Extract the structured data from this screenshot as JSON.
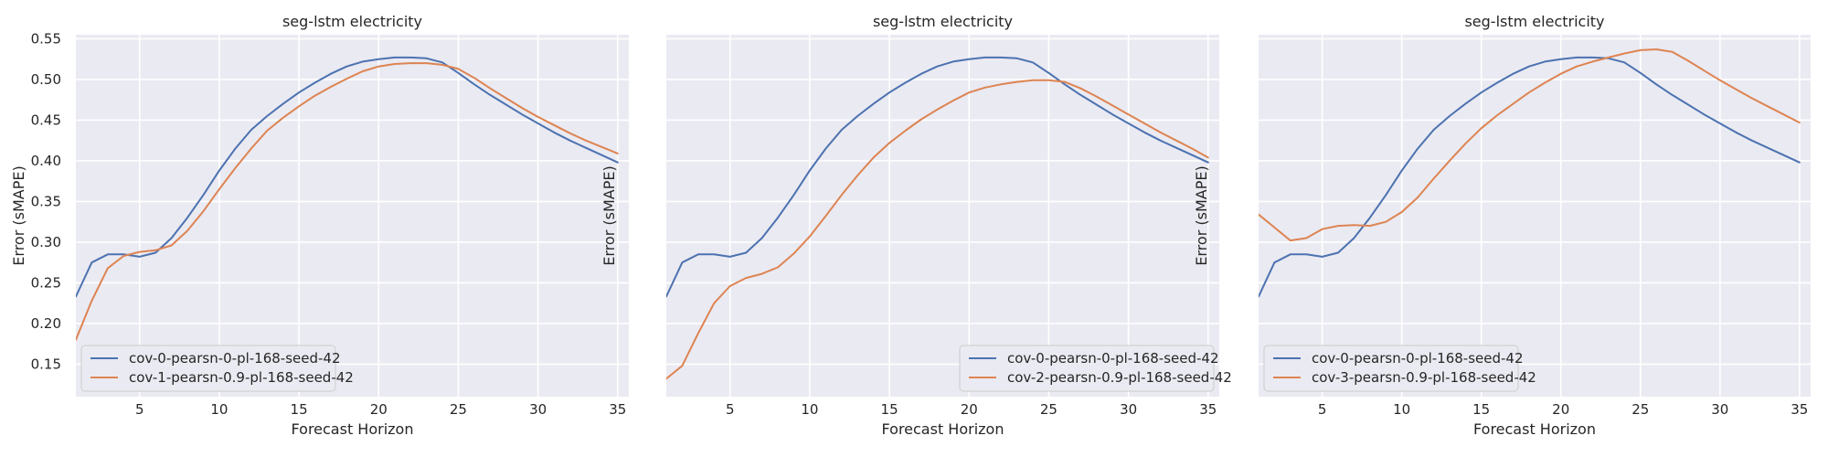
{
  "chart_data": [
    {
      "type": "line",
      "title": "seg-lstm electricity",
      "xlabel": "Forecast Horizon",
      "ylabel": "Error (sMAPE)",
      "xlim": [
        1,
        35.7
      ],
      "ylim": [
        0.11,
        0.555
      ],
      "xticks": [
        5,
        10,
        15,
        20,
        25,
        30,
        35
      ],
      "yticks": [
        0.15,
        0.2,
        0.25,
        0.3,
        0.35,
        0.4,
        0.45,
        0.5,
        0.55
      ],
      "ytick_labels": [
        "0.15",
        "0.20",
        "0.25",
        "0.30",
        "0.35",
        "0.40",
        "0.45",
        "0.50",
        "0.55"
      ],
      "grid": true,
      "legend_position": "lower-left",
      "x": [
        1,
        2,
        3,
        4,
        5,
        6,
        7,
        8,
        9,
        10,
        11,
        12,
        13,
        14,
        15,
        16,
        17,
        18,
        19,
        20,
        21,
        22,
        23,
        24,
        25,
        26,
        27,
        28,
        29,
        30,
        31,
        32,
        33,
        34,
        35
      ],
      "series": [
        {
          "name": "cov-0-pearsn-0-pl-168-seed-42",
          "color": "#4c72b0",
          "values": [
            0.233,
            0.275,
            0.285,
            0.285,
            0.282,
            0.287,
            0.305,
            0.33,
            0.358,
            0.388,
            0.415,
            0.438,
            0.455,
            0.47,
            0.484,
            0.496,
            0.507,
            0.516,
            0.522,
            0.525,
            0.527,
            0.527,
            0.526,
            0.521,
            0.508,
            0.494,
            0.481,
            0.469,
            0.457,
            0.446,
            0.435,
            0.425,
            0.416,
            0.407,
            0.398
          ]
        },
        {
          "name": "cov-1-pearsn-0.9-pl-168-seed-42",
          "color": "#dd8452",
          "values": [
            0.18,
            0.228,
            0.268,
            0.283,
            0.288,
            0.29,
            0.296,
            0.314,
            0.338,
            0.365,
            0.391,
            0.415,
            0.437,
            0.453,
            0.467,
            0.48,
            0.491,
            0.501,
            0.51,
            0.516,
            0.519,
            0.52,
            0.52,
            0.518,
            0.513,
            0.502,
            0.489,
            0.477,
            0.465,
            0.454,
            0.444,
            0.434,
            0.425,
            0.417,
            0.409
          ]
        }
      ]
    },
    {
      "type": "line",
      "title": "seg-lstm electricity",
      "xlabel": "Forecast Horizon",
      "ylabel": "Error (sMAPE)",
      "xlim": [
        1,
        35.7
      ],
      "ylim": [
        0.11,
        0.555
      ],
      "xticks": [
        5,
        10,
        15,
        20,
        25,
        30,
        35
      ],
      "yticks": [
        0.15,
        0.2,
        0.25,
        0.3,
        0.35,
        0.4,
        0.45,
        0.5,
        0.55
      ],
      "ytick_labels": [],
      "grid": true,
      "legend_position": "lower-right",
      "x": [
        1,
        2,
        3,
        4,
        5,
        6,
        7,
        8,
        9,
        10,
        11,
        12,
        13,
        14,
        15,
        16,
        17,
        18,
        19,
        20,
        21,
        22,
        23,
        24,
        25,
        26,
        27,
        28,
        29,
        30,
        31,
        32,
        33,
        34,
        35
      ],
      "series": [
        {
          "name": "cov-0-pearsn-0-pl-168-seed-42",
          "color": "#4c72b0",
          "values": [
            0.233,
            0.275,
            0.285,
            0.285,
            0.282,
            0.287,
            0.305,
            0.33,
            0.358,
            0.388,
            0.415,
            0.438,
            0.455,
            0.47,
            0.484,
            0.496,
            0.507,
            0.516,
            0.522,
            0.525,
            0.527,
            0.527,
            0.526,
            0.521,
            0.508,
            0.494,
            0.481,
            0.469,
            0.457,
            0.446,
            0.435,
            0.425,
            0.416,
            0.407,
            0.398
          ]
        },
        {
          "name": "cov-2-pearsn-0.9-pl-168-seed-42",
          "color": "#dd8452",
          "values": [
            0.132,
            0.148,
            0.188,
            0.225,
            0.246,
            0.256,
            0.261,
            0.269,
            0.286,
            0.307,
            0.332,
            0.358,
            0.382,
            0.404,
            0.422,
            0.437,
            0.451,
            0.463,
            0.474,
            0.484,
            0.49,
            0.494,
            0.497,
            0.499,
            0.499,
            0.497,
            0.489,
            0.479,
            0.468,
            0.457,
            0.446,
            0.435,
            0.425,
            0.415,
            0.404
          ]
        }
      ]
    },
    {
      "type": "line",
      "title": "seg-lstm electricity",
      "xlabel": "Forecast Horizon",
      "ylabel": "Error (sMAPE)",
      "xlim": [
        1,
        35.7
      ],
      "ylim": [
        0.11,
        0.555
      ],
      "xticks": [
        5,
        10,
        15,
        20,
        25,
        30,
        35
      ],
      "yticks": [
        0.15,
        0.2,
        0.25,
        0.3,
        0.35,
        0.4,
        0.45,
        0.5,
        0.55
      ],
      "ytick_labels": [],
      "grid": true,
      "legend_position": "lower-left",
      "x": [
        1,
        2,
        3,
        4,
        5,
        6,
        7,
        8,
        9,
        10,
        11,
        12,
        13,
        14,
        15,
        16,
        17,
        18,
        19,
        20,
        21,
        22,
        23,
        24,
        25,
        26,
        27,
        28,
        29,
        30,
        31,
        32,
        33,
        34,
        35
      ],
      "series": [
        {
          "name": "cov-0-pearsn-0-pl-168-seed-42",
          "color": "#4c72b0",
          "values": [
            0.233,
            0.275,
            0.285,
            0.285,
            0.282,
            0.287,
            0.305,
            0.33,
            0.358,
            0.388,
            0.415,
            0.438,
            0.455,
            0.47,
            0.484,
            0.496,
            0.507,
            0.516,
            0.522,
            0.525,
            0.527,
            0.527,
            0.526,
            0.521,
            0.508,
            0.494,
            0.481,
            0.469,
            0.457,
            0.446,
            0.435,
            0.425,
            0.416,
            0.407,
            0.398
          ]
        },
        {
          "name": "cov-3-pearsn-0.9-pl-168-seed-42",
          "color": "#dd8452",
          "values": [
            0.334,
            0.318,
            0.302,
            0.305,
            0.316,
            0.32,
            0.321,
            0.32,
            0.325,
            0.337,
            0.355,
            0.378,
            0.4,
            0.421,
            0.44,
            0.456,
            0.47,
            0.484,
            0.496,
            0.507,
            0.516,
            0.522,
            0.527,
            0.532,
            0.536,
            0.537,
            0.534,
            0.523,
            0.511,
            0.499,
            0.488,
            0.477,
            0.467,
            0.457,
            0.447
          ]
        }
      ]
    }
  ]
}
